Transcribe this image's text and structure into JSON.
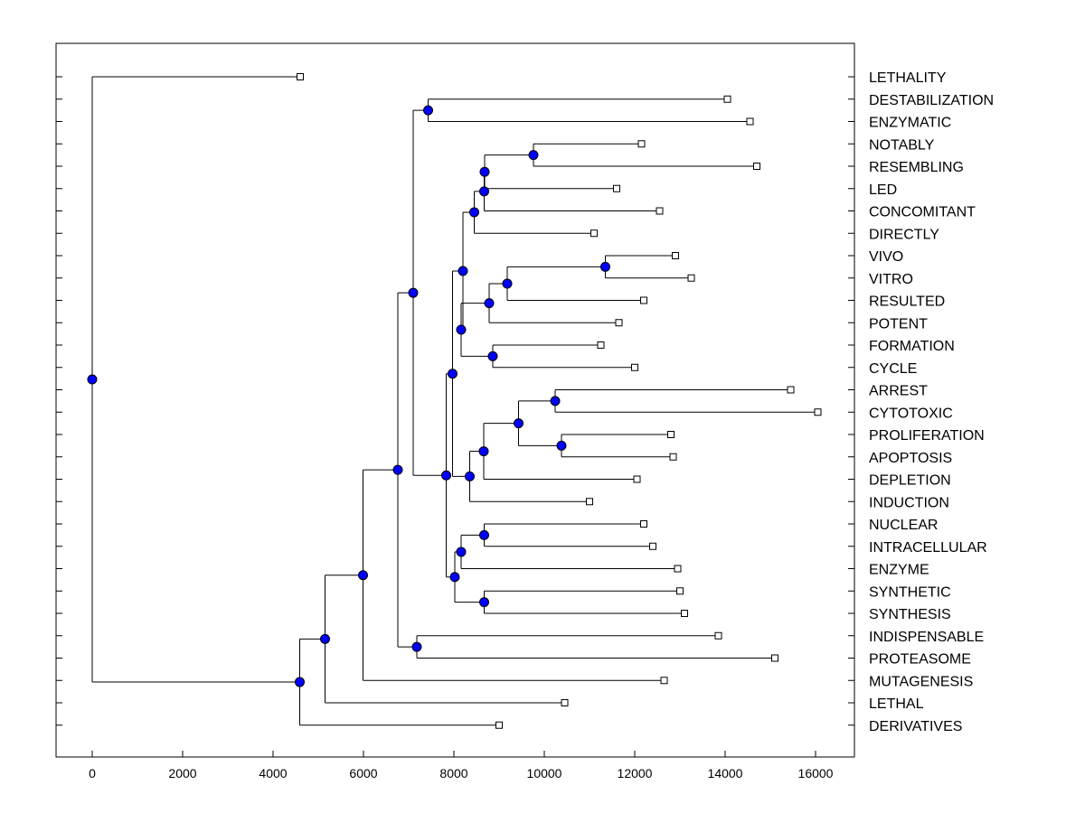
{
  "chart_data": {
    "type": "dendrogram",
    "title": "",
    "xlabel": "",
    "ylabel": "",
    "xlim": [
      -800,
      16900
    ],
    "xticks": [
      0,
      2000,
      4000,
      6000,
      8000,
      10000,
      12000,
      14000,
      16000
    ],
    "leaves": [
      {
        "id": "LETHALITY",
        "x": 4600
      },
      {
        "id": "DESTABILIZATION",
        "x": 14050
      },
      {
        "id": "ENZYMATIC",
        "x": 14550
      },
      {
        "id": "NOTABLY",
        "x": 12150
      },
      {
        "id": "RESEMBLING",
        "x": 14700
      },
      {
        "id": "LED",
        "x": 11600
      },
      {
        "id": "CONCOMITANT",
        "x": 12550
      },
      {
        "id": "DIRECTLY",
        "x": 11100
      },
      {
        "id": "VIVO",
        "x": 12900
      },
      {
        "id": "VITRO",
        "x": 13250
      },
      {
        "id": "RESULTED",
        "x": 12200
      },
      {
        "id": "POTENT",
        "x": 11650
      },
      {
        "id": "FORMATION",
        "x": 11250
      },
      {
        "id": "CYCLE",
        "x": 12000
      },
      {
        "id": "ARREST",
        "x": 15450
      },
      {
        "id": "CYTOTOXIC",
        "x": 16050
      },
      {
        "id": "PROLIFERATION",
        "x": 12800
      },
      {
        "id": "APOPTOSIS",
        "x": 12850
      },
      {
        "id": "DEPLETION",
        "x": 12050
      },
      {
        "id": "INDUCTION",
        "x": 11000
      },
      {
        "id": "NUCLEAR",
        "x": 12200
      },
      {
        "id": "INTRACELLULAR",
        "x": 12400
      },
      {
        "id": "ENZYME",
        "x": 12950
      },
      {
        "id": "SYNTHETIC",
        "x": 13000
      },
      {
        "id": "SYNTHESIS",
        "x": 13100
      },
      {
        "id": "INDISPENSABLE",
        "x": 13850
      },
      {
        "id": "PROTEASOME",
        "x": 15100
      },
      {
        "id": "MUTAGENESIS",
        "x": 12650
      },
      {
        "id": "LETHAL",
        "x": 10450
      },
      {
        "id": "DERIVATIVES",
        "x": 9000
      }
    ],
    "merges": [
      {
        "id": "n1",
        "x": 7430,
        "children": [
          "DESTABILIZATION",
          "ENZYMATIC"
        ]
      },
      {
        "id": "n2",
        "x": 9760,
        "children": [
          "NOTABLY",
          "RESEMBLING"
        ]
      },
      {
        "id": "n3",
        "x": 8680,
        "children": [
          "n2",
          "LED"
        ]
      },
      {
        "id": "n4",
        "x": 8670,
        "children": [
          "n3",
          "CONCOMITANT"
        ]
      },
      {
        "id": "n5",
        "x": 8450,
        "children": [
          "n4",
          "DIRECTLY"
        ]
      },
      {
        "id": "n6",
        "x": 11350,
        "children": [
          "VIVO",
          "VITRO"
        ]
      },
      {
        "id": "n7",
        "x": 9180,
        "children": [
          "n6",
          "RESULTED"
        ]
      },
      {
        "id": "n8",
        "x": 8780,
        "children": [
          "n7",
          "POTENT"
        ]
      },
      {
        "id": "n9",
        "x": 8860,
        "children": [
          "FORMATION",
          "CYCLE"
        ]
      },
      {
        "id": "n10",
        "x": 8160,
        "children": [
          "n8",
          "n9"
        ]
      },
      {
        "id": "n11",
        "x": 8200,
        "children": [
          "n5",
          "n10"
        ]
      },
      {
        "id": "n12",
        "x": 10240,
        "children": [
          "ARREST",
          "CYTOTOXIC"
        ]
      },
      {
        "id": "n13",
        "x": 10380,
        "children": [
          "PROLIFERATION",
          "APOPTOSIS"
        ]
      },
      {
        "id": "n14",
        "x": 9430,
        "children": [
          "n12",
          "n13"
        ]
      },
      {
        "id": "n15",
        "x": 8660,
        "children": [
          "n14",
          "DEPLETION"
        ]
      },
      {
        "id": "n16",
        "x": 8350,
        "children": [
          "n15",
          "INDUCTION"
        ]
      },
      {
        "id": "n17",
        "x": 7970,
        "children": [
          "n11",
          "n16"
        ]
      },
      {
        "id": "n18",
        "x": 8670,
        "children": [
          "NUCLEAR",
          "INTRACELLULAR"
        ]
      },
      {
        "id": "n19",
        "x": 8160,
        "children": [
          "n18",
          "ENZYME"
        ]
      },
      {
        "id": "n20",
        "x": 8670,
        "children": [
          "SYNTHETIC",
          "SYNTHESIS"
        ]
      },
      {
        "id": "n21",
        "x": 8020,
        "children": [
          "n19",
          "n20"
        ]
      },
      {
        "id": "n22",
        "x": 7830,
        "children": [
          "n17",
          "n21"
        ]
      },
      {
        "id": "n23",
        "x": 7100,
        "children": [
          "n1",
          "n22"
        ]
      },
      {
        "id": "n24",
        "x": 7180,
        "children": [
          "INDISPENSABLE",
          "PROTEASOME"
        ]
      },
      {
        "id": "n25",
        "x": 6760,
        "children": [
          "n23",
          "n24"
        ]
      },
      {
        "id": "n26",
        "x": 5990,
        "children": [
          "n25",
          "MUTAGENESIS"
        ]
      },
      {
        "id": "n27",
        "x": 5150,
        "children": [
          "n26",
          "LETHAL"
        ]
      },
      {
        "id": "n28",
        "x": 4590,
        "children": [
          "n27",
          "DERIVATIVES"
        ]
      },
      {
        "id": "n29",
        "x": 0,
        "children": [
          "LETHALITY",
          "n28"
        ]
      }
    ]
  }
}
